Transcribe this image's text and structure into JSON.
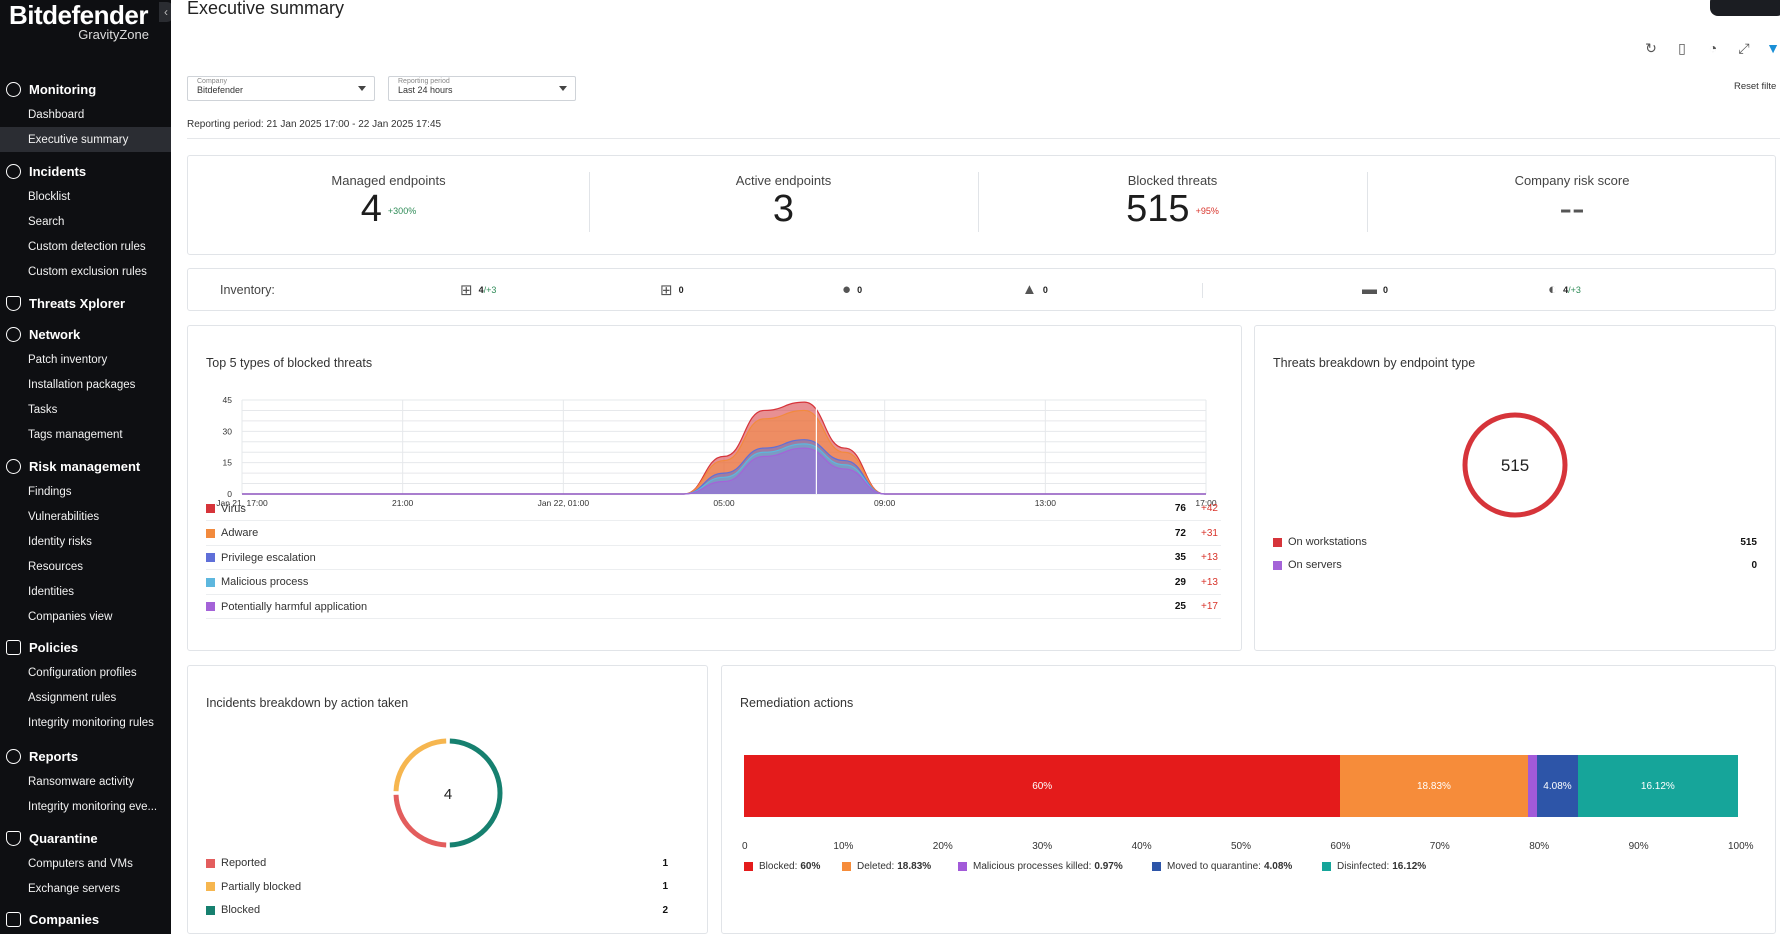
{
  "brand": {
    "name": "Bitdefender",
    "product": "GravityZone"
  },
  "sidebar": {
    "groups": [
      {
        "head": "Monitoring",
        "icon": "monitoring-icon",
        "items": [
          "Dashboard",
          "Executive summary"
        ]
      },
      {
        "head": "Incidents",
        "icon": "incidents-icon",
        "items": [
          "Blocklist",
          "Search",
          "Custom detection rules",
          "Custom exclusion rules"
        ]
      },
      {
        "head": "Threats Xplorer",
        "icon": "shield-icon",
        "items": []
      },
      {
        "head": "Network",
        "icon": "network-icon",
        "items": [
          "Patch inventory",
          "Installation packages",
          "Tasks",
          "Tags management"
        ]
      },
      {
        "head": "Risk management",
        "icon": "risk-icon",
        "items": [
          "Findings",
          "Vulnerabilities",
          "Identity risks",
          "Resources",
          "Identities",
          "Companies view"
        ]
      },
      {
        "head": "Policies",
        "icon": "policies-icon",
        "items": [
          "Configuration profiles",
          "Assignment rules",
          "Integrity monitoring rules"
        ]
      },
      {
        "head": "Reports",
        "icon": "reports-icon",
        "items": [
          "Ransomware activity",
          "Integrity monitoring eve..."
        ]
      },
      {
        "head": "Quarantine",
        "icon": "quarantine-icon",
        "items": [
          "Computers and VMs",
          "Exchange servers"
        ]
      },
      {
        "head": "Companies",
        "icon": "companies-icon",
        "items": []
      }
    ],
    "active_item": "Executive summary"
  },
  "page": {
    "title": "Executive summary",
    "reset_filter": "Reset filte",
    "company": {
      "label": "Company",
      "value": "Bitdefender"
    },
    "period": {
      "label": "Reporting period",
      "value": "Last 24 hours"
    },
    "reporting_period_text": "Reporting period: 21 Jan 2025 17:00 - 22 Jan 2025 17:45"
  },
  "kpis": [
    {
      "label": "Managed endpoints",
      "value": "4",
      "delta": "+300%",
      "delta_color": "#2e8b57"
    },
    {
      "label": "Active endpoints",
      "value": "3",
      "delta": "",
      "delta_color": "#2e8b57"
    },
    {
      "label": "Blocked threats",
      "value": "515",
      "delta": "+95%",
      "delta_color": "#d9342b"
    },
    {
      "label": "Company risk score",
      "value": "--",
      "delta": "",
      "delta_color": "#2e8b57"
    }
  ],
  "inventory": {
    "label": "Inventory:",
    "items": [
      {
        "icon": "windows-workstation-icon",
        "glyph": "⊞",
        "count": "4",
        "extra": "+3"
      },
      {
        "icon": "windows-server-icon",
        "glyph": "⊞",
        "count": "0",
        "extra": ""
      },
      {
        "icon": "apple-icon",
        "glyph": "●",
        "count": "0",
        "extra": ""
      },
      {
        "icon": "linux-icon",
        "glyph": "▲",
        "count": "0",
        "extra": ""
      },
      {
        "icon": "monitor-icon",
        "glyph": "▬",
        "count": "0",
        "extra": ""
      },
      {
        "icon": "virtual-machine-icon",
        "glyph": "◐",
        "count": "4",
        "extra": "+3"
      }
    ]
  },
  "top_threats": {
    "title": "Top 5 types of blocked threats",
    "legend": [
      {
        "name": "Virus",
        "count": "76",
        "delta": "+42",
        "color": "#d6343a"
      },
      {
        "name": "Adware",
        "count": "72",
        "delta": "+31",
        "color": "#f28a3d"
      },
      {
        "name": "Privilege escalation",
        "count": "35",
        "delta": "+13",
        "color": "#5f6fd8"
      },
      {
        "name": "Malicious process",
        "count": "29",
        "delta": "+13",
        "color": "#5db7de"
      },
      {
        "name": "Potentially harmful application",
        "count": "25",
        "delta": "+17",
        "color": "#a463d8"
      }
    ]
  },
  "threats_breakdown": {
    "title": "Threats breakdown by endpoint type",
    "total": "515",
    "ring_color": "#d6343a",
    "legend": [
      {
        "name": "On workstations",
        "value": "515",
        "color": "#d6343a"
      },
      {
        "name": "On servers",
        "value": "0",
        "color": "#a463d8"
      }
    ]
  },
  "incidents_breakdown": {
    "title": "Incidents breakdown by action taken",
    "total": "4",
    "legend": [
      {
        "name": "Reported",
        "value": "1",
        "color": "#e35d5d"
      },
      {
        "name": "Partially blocked",
        "value": "1",
        "color": "#f6b64f"
      },
      {
        "name": "Blocked",
        "value": "2",
        "color": "#16806f"
      }
    ]
  },
  "remediation": {
    "title": "Remediation actions",
    "segments": [
      {
        "name": "Blocked:",
        "value": "60%",
        "pct": 60,
        "color": "#e41b1b",
        "show": true
      },
      {
        "name": "Deleted:",
        "value": "18.83%",
        "pct": 18.83,
        "color": "#f68c3a",
        "show": true
      },
      {
        "name": "Malicious processes killed:",
        "value": "0.97%",
        "pct": 0.97,
        "color": "#a25ad9",
        "show": false
      },
      {
        "name": "Moved to quarantine:",
        "value": "4.08%",
        "pct": 4.08,
        "color": "#2d55a8",
        "show": true
      },
      {
        "name": "Disinfected:",
        "value": "16.12%",
        "pct": 16.12,
        "color": "#16a59a",
        "show": true
      }
    ],
    "axis": [
      "0",
      "10%",
      "20%",
      "30%",
      "40%",
      "50%",
      "60%",
      "70%",
      "80%",
      "90%",
      "100%"
    ]
  },
  "chart_data": {
    "type": "area",
    "title": "Top 5 types of blocked threats",
    "x_ticks": [
      "Jan 21, 17:00",
      "21:00",
      "Jan 22, 01:00",
      "05:00",
      "09:00",
      "13:00",
      "17:00"
    ],
    "y_ticks": [
      0,
      15,
      30,
      45
    ],
    "ylim": [
      0,
      45
    ],
    "x_hours": [
      0,
      11,
      12,
      13,
      14,
      15,
      16,
      24
    ],
    "series": [
      {
        "name": "Potentially harmful application",
        "color": "#a463d8",
        "values": [
          0,
          0,
          6,
          18,
          22,
          12,
          0,
          0
        ]
      },
      {
        "name": "Malicious process",
        "color": "#5db7de",
        "values": [
          0,
          0,
          8,
          20,
          24,
          14,
          0,
          0
        ]
      },
      {
        "name": "Privilege escalation",
        "color": "#5f6fd8",
        "values": [
          0,
          0,
          10,
          22,
          26,
          16,
          0,
          0
        ]
      },
      {
        "name": "Adware",
        "color": "#f28a3d",
        "values": [
          0,
          0,
          16,
          36,
          40,
          20,
          0,
          0
        ]
      },
      {
        "name": "Virus",
        "color": "#d6343a",
        "values": [
          0,
          0,
          18,
          40,
          44,
          22,
          0,
          0
        ]
      }
    ]
  }
}
